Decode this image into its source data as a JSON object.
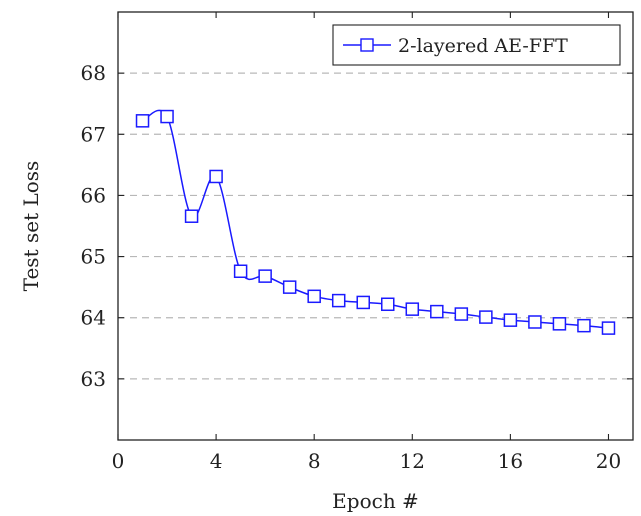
{
  "chart_data": {
    "type": "line",
    "title": "",
    "xlabel": "Epoch #",
    "ylabel": "Test set Loss",
    "xlim": [
      0,
      21
    ],
    "ylim": [
      62,
      69
    ],
    "xticks": [
      0,
      4,
      8,
      12,
      16,
      20
    ],
    "yticks": [
      63,
      64,
      65,
      66,
      67,
      68
    ],
    "grid": "horizontal dashed",
    "legend_position": "top-right",
    "series": [
      {
        "name": "2-layered AE-FFT",
        "color": "#1a1aff",
        "marker": "square",
        "smooth": true,
        "x": [
          1,
          2,
          3,
          4,
          5,
          6,
          7,
          8,
          9,
          10,
          11,
          12,
          13,
          14,
          15,
          16,
          17,
          18,
          19,
          20
        ],
        "values": [
          67.22,
          67.29,
          65.66,
          66.31,
          64.76,
          64.68,
          64.5,
          64.35,
          64.28,
          64.25,
          64.22,
          64.14,
          64.1,
          64.06,
          64.01,
          63.96,
          63.93,
          63.9,
          63.87,
          63.83
        ]
      }
    ]
  }
}
